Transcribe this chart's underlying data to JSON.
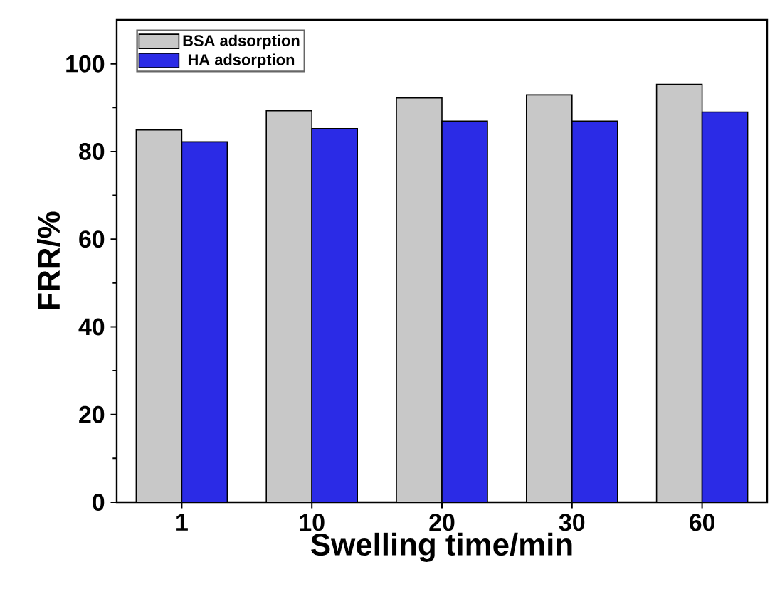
{
  "chart_data": {
    "type": "bar",
    "xlabel": "Swelling time/min",
    "ylabel": "FRR/%",
    "categories": [
      "1",
      "10",
      "20",
      "30",
      "60"
    ],
    "series": [
      {
        "name": "BSA adsorption",
        "color": "#c8c8c8",
        "values": [
          84.9,
          89.3,
          92.2,
          92.9,
          95.3
        ]
      },
      {
        "name": "HA adsorption",
        "color": "#2b2be6",
        "values": [
          82.2,
          85.2,
          86.9,
          86.9,
          89.0
        ]
      }
    ],
    "ylim": [
      0,
      110
    ],
    "yticks": [
      0,
      20,
      40,
      60,
      80,
      100
    ],
    "legend": "top left",
    "grid": false
  }
}
